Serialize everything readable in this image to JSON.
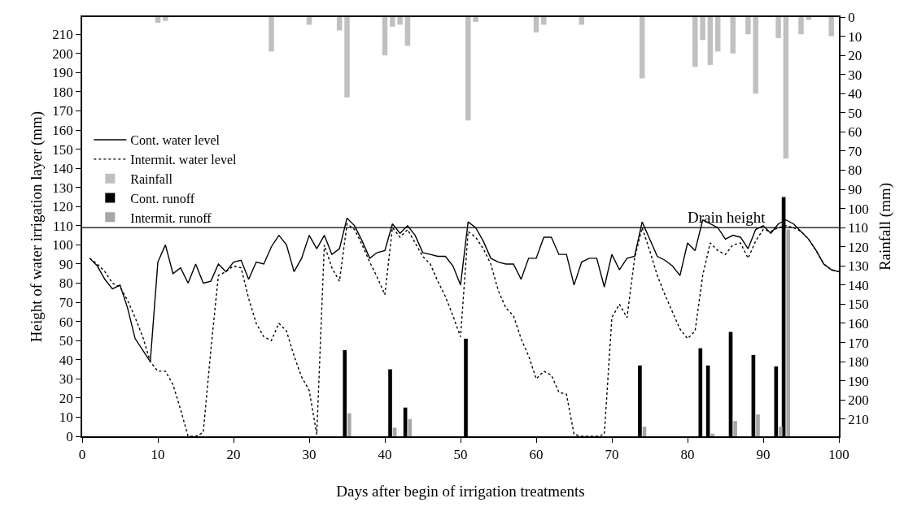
{
  "chart_data": {
    "type": "line",
    "xlabel": "Days after begin of irrigation treatments",
    "ylabel": "Height of water irrigation layer (mm)",
    "y2label": "Rainfall (mm)",
    "xlim": [
      0,
      100
    ],
    "xticks": [
      0,
      10,
      20,
      30,
      40,
      50,
      60,
      70,
      80,
      90,
      100
    ],
    "ylim": [
      0,
      219
    ],
    "yticks": [
      0,
      10,
      20,
      30,
      40,
      50,
      60,
      70,
      80,
      90,
      100,
      110,
      120,
      130,
      140,
      150,
      160,
      170,
      180,
      190,
      200,
      210
    ],
    "y2lim": [
      219,
      0
    ],
    "y2ticks": [
      0,
      10,
      20,
      30,
      40,
      50,
      60,
      70,
      80,
      90,
      100,
      110,
      120,
      130,
      140,
      150,
      160,
      170,
      180,
      190,
      200,
      210
    ],
    "legend": "top left",
    "marker": "none",
    "ref_lines": [
      {
        "axis": "y",
        "value": 109,
        "label": "Drain height",
        "color": "#000000"
      }
    ],
    "series": [
      {
        "name": "Cont. water level",
        "color": "#000000",
        "line_style": "solid",
        "x": [
          1,
          2,
          3,
          4,
          5,
          6,
          7,
          8,
          9,
          10,
          11,
          12,
          13,
          14,
          15,
          16,
          17,
          18,
          19,
          20,
          21,
          22,
          23,
          24,
          25,
          26,
          27,
          28,
          29,
          30,
          31,
          32,
          33,
          34,
          35,
          36,
          37,
          38,
          39,
          40,
          41,
          42,
          43,
          44,
          45,
          46,
          47,
          48,
          49,
          50,
          51,
          52,
          53,
          54,
          55,
          56,
          57,
          58,
          59,
          60,
          61,
          62,
          63,
          64,
          65,
          66,
          67,
          68,
          69,
          70,
          71,
          72,
          73,
          74,
          75,
          76,
          77,
          78,
          79,
          80,
          81,
          82,
          83,
          84,
          85,
          86,
          87,
          88,
          89,
          90,
          91,
          92,
          93,
          94,
          95,
          96,
          97,
          98,
          99,
          100
        ],
        "values": [
          93,
          89,
          82,
          77,
          79,
          67,
          51,
          45,
          39,
          91,
          100,
          85,
          88,
          80,
          90,
          80,
          81,
          90,
          86,
          91,
          92,
          82,
          91,
          90,
          99,
          105,
          100,
          86,
          93,
          105,
          98,
          105,
          95,
          98,
          114,
          110,
          102,
          93,
          96,
          97,
          111,
          106,
          110,
          105,
          96,
          95,
          94,
          94,
          89,
          79,
          112,
          109,
          102,
          93,
          91,
          90,
          90,
          82,
          93,
          93,
          104,
          104,
          95,
          95,
          79,
          91,
          93,
          93,
          78,
          95,
          87,
          93,
          94,
          112,
          103,
          94,
          92,
          89,
          84,
          101,
          97,
          113,
          111,
          109,
          103,
          105,
          104,
          98,
          108,
          110,
          106,
          111,
          113,
          111,
          107,
          103,
          97,
          90,
          87,
          86
        ]
      },
      {
        "name": "Intermit. water level",
        "color": "#000000",
        "line_style": "dotted",
        "x": [
          1,
          2,
          3,
          4,
          5,
          6,
          7,
          8,
          9,
          10,
          11,
          12,
          13,
          14,
          15,
          16,
          17,
          18,
          19,
          20,
          21,
          22,
          23,
          24,
          25,
          26,
          27,
          28,
          29,
          30,
          31,
          32,
          33,
          34,
          35,
          36,
          37,
          38,
          39,
          40,
          41,
          42,
          43,
          44,
          45,
          46,
          47,
          48,
          49,
          50,
          51,
          52,
          53,
          54,
          55,
          56,
          57,
          58,
          59,
          60,
          61,
          62,
          63,
          64,
          65,
          66,
          67,
          68,
          69,
          70,
          71,
          72,
          73,
          74,
          75,
          76,
          77,
          78,
          79,
          80,
          81,
          82,
          83,
          84,
          85,
          86,
          87,
          88,
          89,
          90,
          91,
          92,
          93,
          94,
          95,
          96,
          97,
          98,
          99,
          100
        ],
        "values": [
          93,
          90,
          86,
          80,
          78,
          71,
          62,
          52,
          39,
          34,
          34,
          27,
          14,
          0,
          0,
          2,
          45,
          84,
          86,
          89,
          88,
          72,
          59,
          52,
          50,
          59,
          55,
          42,
          31,
          24,
          1,
          100,
          88,
          81,
          111,
          108,
          100,
          91,
          83,
          74,
          109,
          104,
          108,
          101,
          94,
          90,
          81,
          73,
          63,
          52,
          107,
          104,
          98,
          90,
          76,
          67,
          63,
          51,
          42,
          30,
          34,
          32,
          23,
          22,
          1,
          0,
          0,
          0,
          1,
          62,
          69,
          62,
          93,
          109,
          97,
          84,
          74,
          65,
          56,
          51,
          55,
          84,
          101,
          97,
          95,
          100,
          101,
          93,
          102,
          108,
          107,
          109,
          110,
          109,
          107,
          103,
          97,
          90,
          87,
          86
        ]
      },
      {
        "name": "Rainfall",
        "type": "bar",
        "axis": "y2",
        "color": "#c0c0c0",
        "x": [
          10,
          11,
          25,
          30,
          34,
          35,
          40,
          41,
          42,
          43,
          51,
          52,
          60,
          61,
          66,
          74,
          81,
          82,
          83,
          84,
          86,
          88,
          89,
          92,
          93,
          95,
          96,
          99
        ],
        "values": [
          3,
          2,
          18,
          4,
          7,
          42,
          20,
          5,
          4,
          15,
          54,
          2.5,
          8,
          4,
          4,
          32,
          26,
          12,
          25,
          18,
          19,
          9,
          40,
          11,
          74,
          9,
          1.5,
          10
        ]
      },
      {
        "name": "Cont. runoff",
        "type": "bar",
        "color": "#000000",
        "x": [
          35,
          41,
          43,
          51,
          74,
          82,
          83,
          86,
          89,
          92,
          93
        ],
        "values": [
          45,
          35,
          15,
          51,
          37,
          46,
          37,
          54.5,
          42.5,
          36.5,
          125
        ]
      },
      {
        "name": "Intermit. runoff",
        "type": "bar",
        "color": "#a6a6a6",
        "x": [
          35,
          41,
          43,
          74,
          83,
          86,
          89,
          92,
          93
        ],
        "values": [
          12,
          4.5,
          9,
          5,
          1.4,
          8,
          11.5,
          5,
          108
        ]
      }
    ]
  }
}
